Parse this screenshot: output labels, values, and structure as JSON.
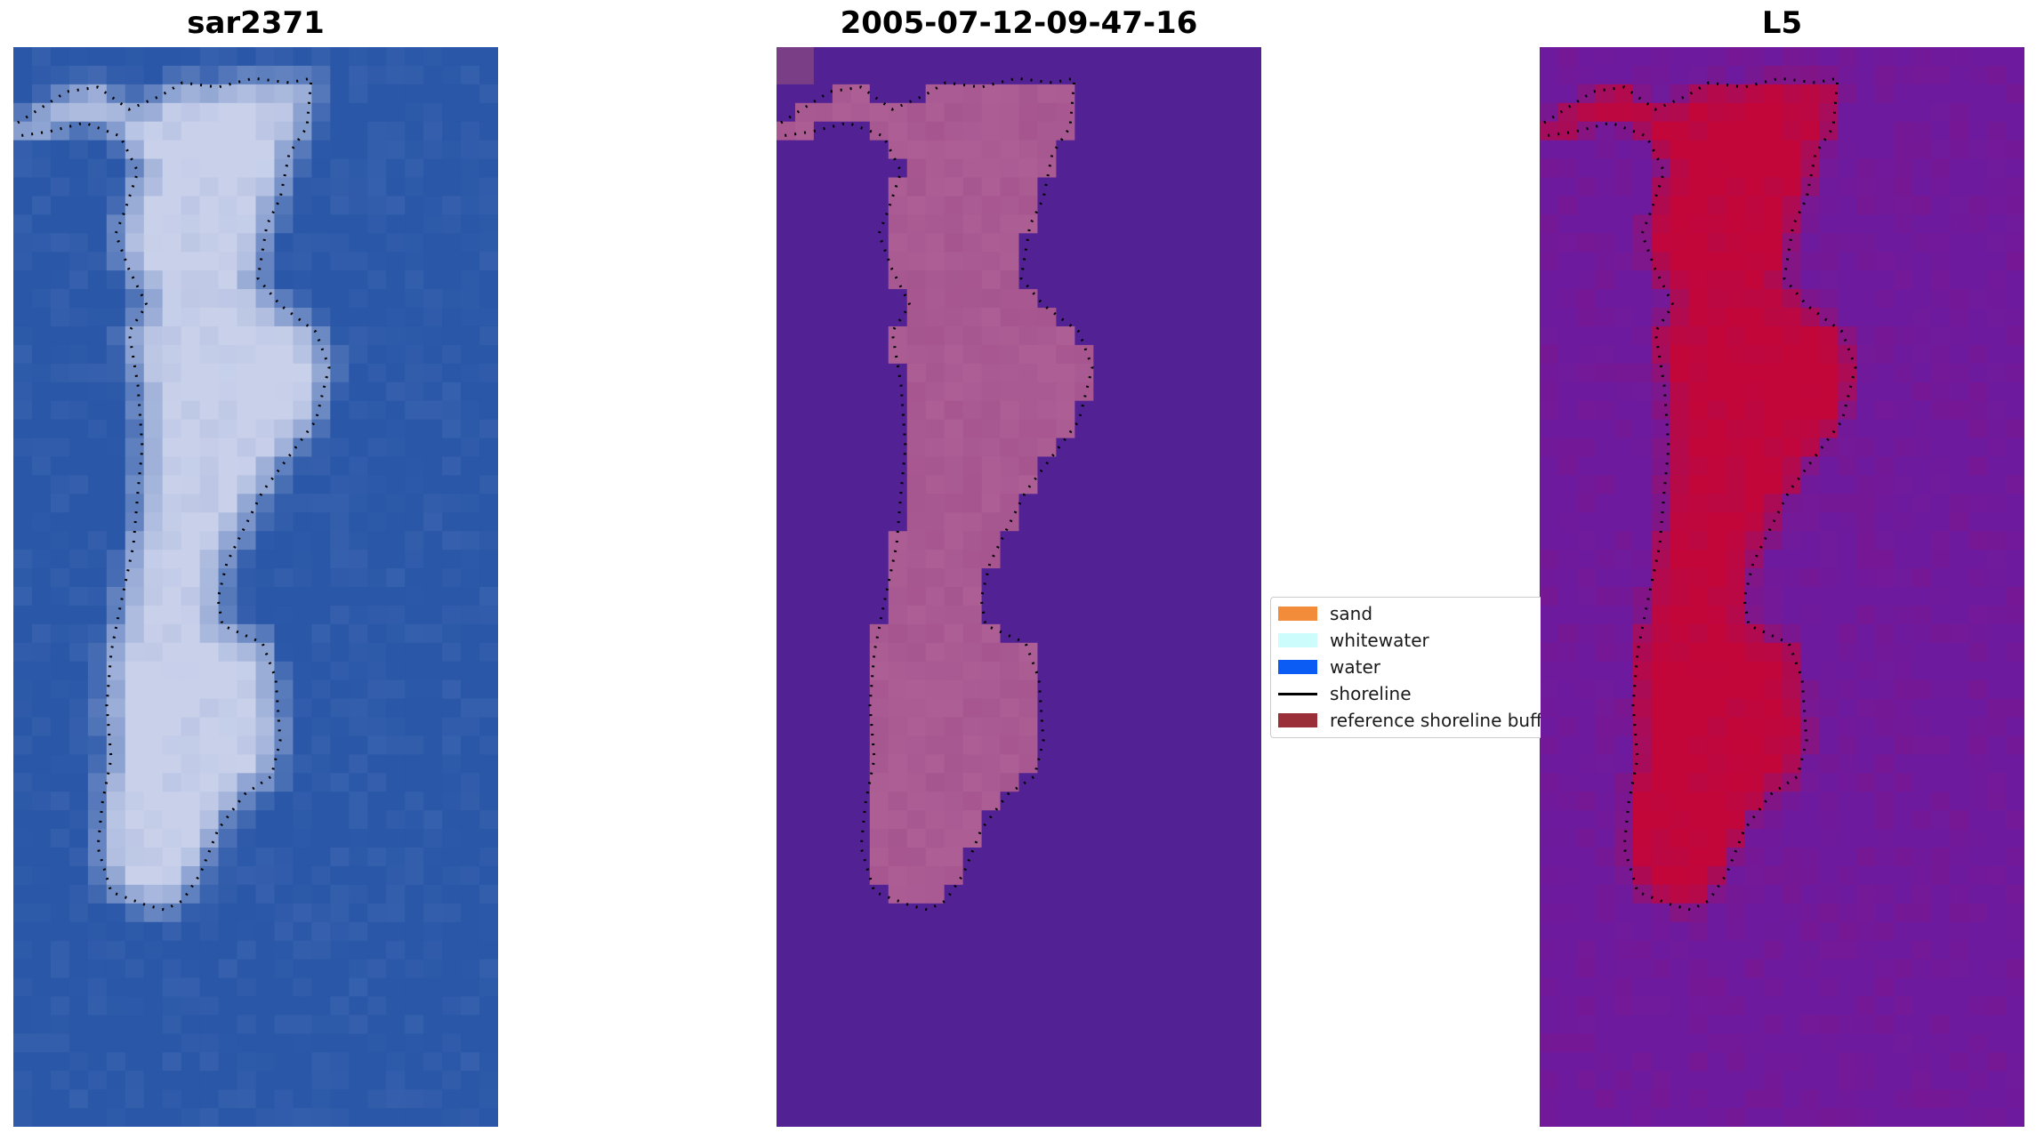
{
  "panels": [
    {
      "title": "sar2371",
      "kind": "rgb-image"
    },
    {
      "title": "2005-07-12-09-47-16",
      "kind": "classification"
    },
    {
      "title": "L5",
      "kind": "index-image"
    }
  ],
  "legend": {
    "items": [
      {
        "label": "sand",
        "type": "patch",
        "color": "#f28c3a"
      },
      {
        "label": "whitewater",
        "type": "patch",
        "color": "#ccfcfc"
      },
      {
        "label": "water",
        "type": "patch",
        "color": "#0a5cf5"
      },
      {
        "label": "shoreline",
        "type": "line",
        "color": "#000000"
      },
      {
        "label": "reference shoreline buffer",
        "type": "patch",
        "color": "#9b2f39"
      }
    ]
  },
  "colors": {
    "rgb_water": "#2a57a8",
    "rgb_land": "#c8d0ea",
    "class_water": "#522294",
    "class_land": "#a6558f",
    "class_buffer": "#c03a4e",
    "index_low": "#6e1a9e",
    "index_high": "#c2063a",
    "shoreline": "#000000"
  }
}
